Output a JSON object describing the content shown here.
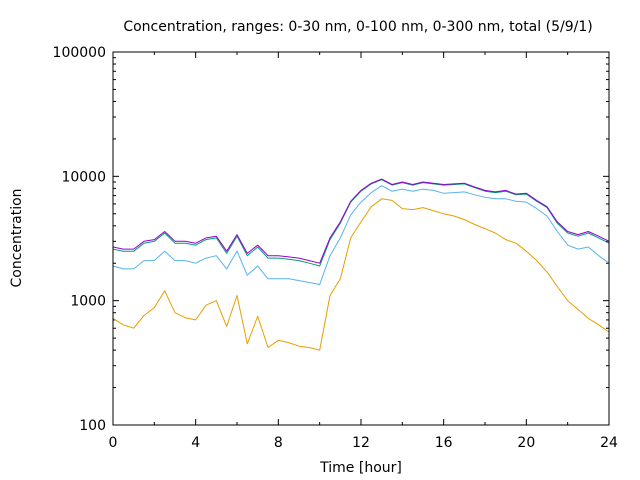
{
  "chart_data": {
    "type": "line",
    "title": "Concentration, ranges: 0-30 nm, 0-100 nm, 0-300 nm, total (5/9/1)",
    "xlabel": "Time [hour]",
    "ylabel": "Concentration",
    "xlim": [
      0,
      24
    ],
    "ylim": [
      100,
      100000
    ],
    "yscale": "log",
    "grid": false,
    "legend": "none",
    "x_ticks": [
      0,
      4,
      8,
      12,
      16,
      20,
      24
    ],
    "x_tick_labels": [
      "0",
      "4",
      "8",
      "12",
      "16",
      "20",
      "24"
    ],
    "y_ticks": [
      100,
      1000,
      10000,
      100000
    ],
    "y_tick_labels": [
      "100",
      "1000",
      "10000",
      "100000"
    ],
    "x": [
      0,
      0.5,
      1,
      1.5,
      2,
      2.5,
      3,
      3.5,
      4,
      4.5,
      5,
      5.5,
      6,
      6.5,
      7,
      7.5,
      8,
      8.5,
      9,
      9.5,
      10,
      10.5,
      11,
      11.5,
      12,
      12.5,
      13,
      13.5,
      14,
      14.5,
      15,
      15.5,
      16,
      16.5,
      17,
      17.5,
      18,
      18.5,
      19,
      19.5,
      20,
      20.5,
      21,
      21.5,
      22,
      22.5,
      23,
      23.5,
      24
    ],
    "series": [
      {
        "color": "#e69f00",
        "values": [
          720,
          640,
          600,
          760,
          880,
          1200,
          800,
          730,
          700,
          920,
          1000,
          620,
          1100,
          450,
          750,
          420,
          480,
          460,
          430,
          420,
          400,
          1100,
          1500,
          3200,
          4300,
          5700,
          6600,
          6400,
          5500,
          5400,
          5600,
          5300,
          5000,
          4800,
          4500,
          4100,
          3800,
          3500,
          3100,
          2900,
          2500,
          2100,
          1700,
          1300,
          1000,
          850,
          720,
          640,
          560
        ]
      },
      {
        "color": "#56b4e9",
        "values": [
          1900,
          1800,
          1800,
          2100,
          2100,
          2500,
          2100,
          2100,
          2000,
          2200,
          2300,
          1800,
          2500,
          1600,
          1900,
          1500,
          1500,
          1500,
          1450,
          1400,
          1350,
          2300,
          3200,
          4900,
          6200,
          7400,
          8400,
          7600,
          7900,
          7600,
          7900,
          7700,
          7300,
          7400,
          7500,
          7100,
          6800,
          6600,
          6600,
          6300,
          6200,
          5500,
          4800,
          3600,
          2800,
          2600,
          2700,
          2300,
          2000
        ]
      },
      {
        "color": "#009e73",
        "values": [
          2600,
          2500,
          2500,
          2900,
          3000,
          3500,
          2900,
          2900,
          2800,
          3100,
          3200,
          2400,
          3300,
          2300,
          2700,
          2200,
          2200,
          2150,
          2100,
          2000,
          1900,
          3100,
          4200,
          6200,
          7600,
          8700,
          9400,
          8500,
          8900,
          8500,
          8900,
          8700,
          8500,
          8600,
          8700,
          8100,
          7600,
          7400,
          7600,
          7100,
          7200,
          6300,
          5600,
          4200,
          3500,
          3300,
          3500,
          3200,
          2900
        ]
      },
      {
        "color": "#9400d3",
        "values": [
          2700,
          2600,
          2600,
          3000,
          3100,
          3600,
          3000,
          3000,
          2900,
          3200,
          3300,
          2500,
          3400,
          2400,
          2800,
          2300,
          2300,
          2250,
          2200,
          2100,
          2000,
          3200,
          4300,
          6300,
          7700,
          8800,
          9500,
          8600,
          9000,
          8600,
          9000,
          8800,
          8600,
          8700,
          8800,
          8200,
          7700,
          7500,
          7700,
          7200,
          7300,
          6400,
          5700,
          4300,
          3600,
          3400,
          3600,
          3300,
          3000
        ]
      }
    ]
  }
}
